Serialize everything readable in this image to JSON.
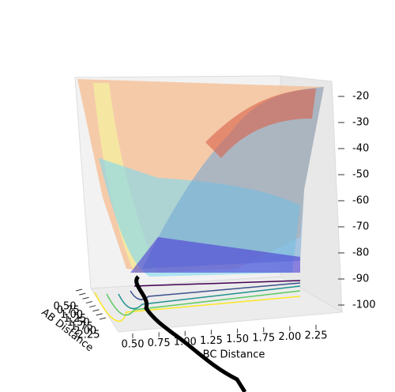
{
  "chart_data": {
    "type": "surface3d",
    "xlabel": "AB Distance",
    "ylabel": "BC Distance",
    "xlim": [
      0.5,
      2.25
    ],
    "ylim": [
      0.5,
      2.25
    ],
    "zlim": [
      -100,
      -20
    ],
    "xticks": [
      {
        "value": 0.5,
        "label": "0.50"
      },
      {
        "value": 0.75,
        "label": "0.75"
      },
      {
        "value": 1,
        "label": "1.00"
      },
      {
        "value": 1.25,
        "label": "1.25"
      },
      {
        "value": 1.5,
        "label": "1.50"
      },
      {
        "value": 1.75,
        "label": "1.75"
      },
      {
        "value": 2,
        "label": "2.00"
      },
      {
        "value": 2.25,
        "label": "2.25"
      }
    ],
    "yticks": [
      {
        "value": 0.5,
        "label": "0.50"
      },
      {
        "value": 0.75,
        "label": "0.75"
      },
      {
        "value": 1,
        "label": "1.00"
      },
      {
        "value": 1.25,
        "label": "1.25"
      },
      {
        "value": 1.5,
        "label": "1.50"
      },
      {
        "value": 1.75,
        "label": "1.75"
      },
      {
        "value": 2,
        "label": "2.00"
      },
      {
        "value": 2.25,
        "label": "2.25"
      }
    ],
    "zticks": [
      -20,
      -30,
      -40,
      -50,
      -60,
      -70,
      -80,
      -90,
      -100
    ]
  }
}
